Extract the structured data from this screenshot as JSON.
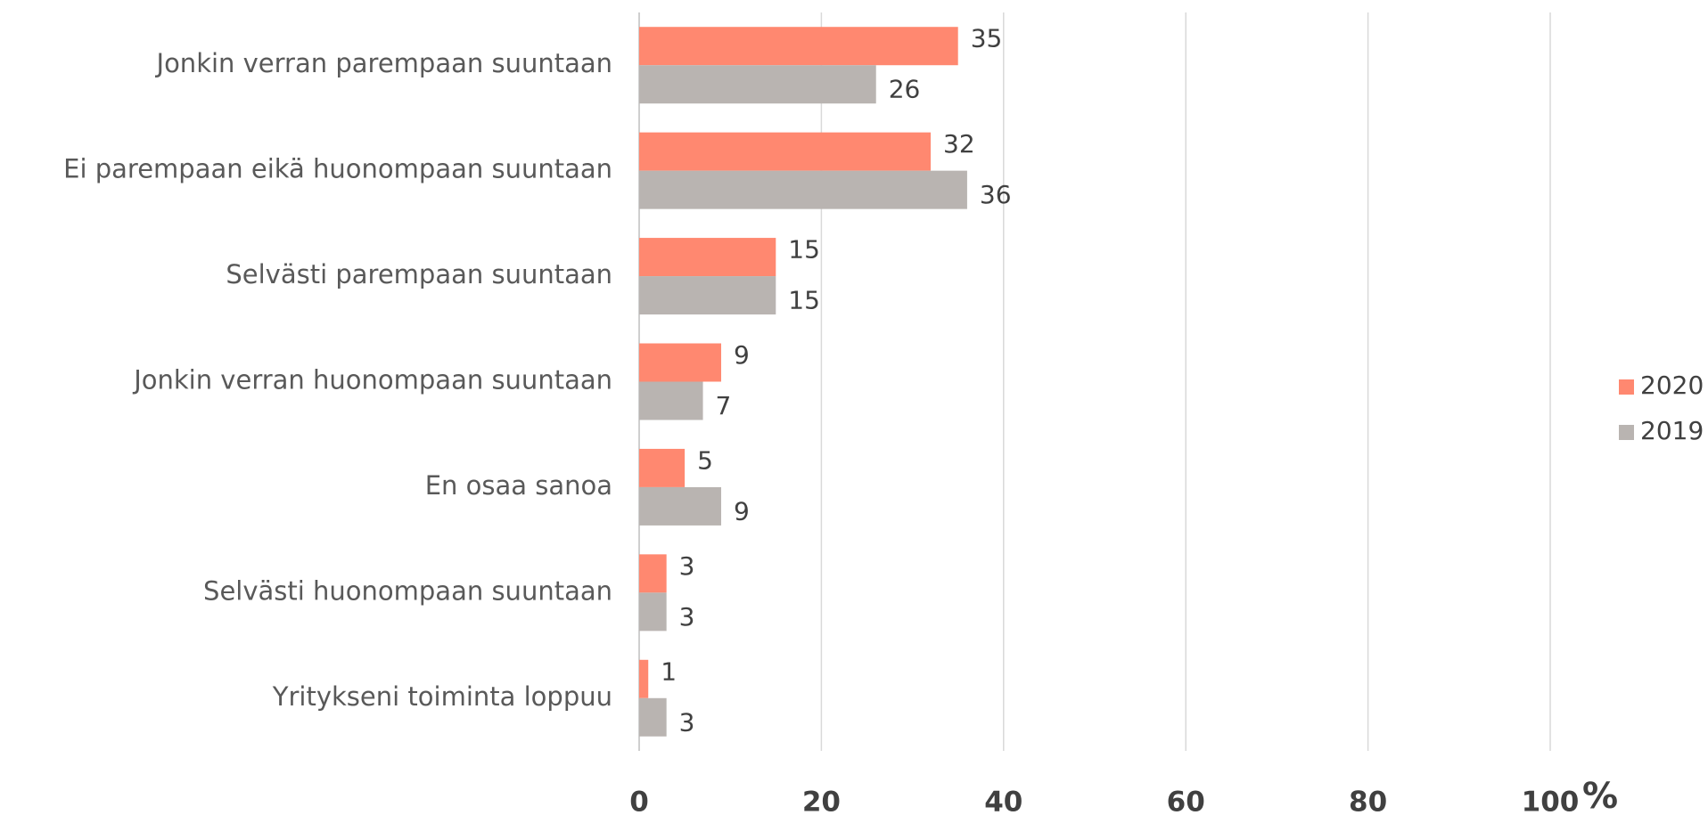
{
  "chart_data": {
    "type": "bar",
    "orientation": "horizontal",
    "categories": [
      "Jonkin verran parempaan suuntaan",
      "Ei parempaan eikä huonompaan suuntaan",
      "Selvästi parempaan suuntaan",
      "Jonkin verran huonompaan suuntaan",
      "En osaa sanoa",
      "Selvästi huonompaan suuntaan",
      "Yritykseni toiminta loppuu"
    ],
    "series": [
      {
        "name": "2020",
        "color": "#ff8870",
        "values": [
          35,
          32,
          15,
          9,
          5,
          3,
          1
        ]
      },
      {
        "name": "2019",
        "color": "#b9b4b1",
        "values": [
          26,
          36,
          15,
          7,
          9,
          3,
          3
        ]
      }
    ],
    "xlim": [
      0,
      100
    ],
    "xticks": [
      0,
      20,
      40,
      60,
      80,
      100
    ],
    "x_unit": "%",
    "grid": true,
    "legend": "right"
  }
}
